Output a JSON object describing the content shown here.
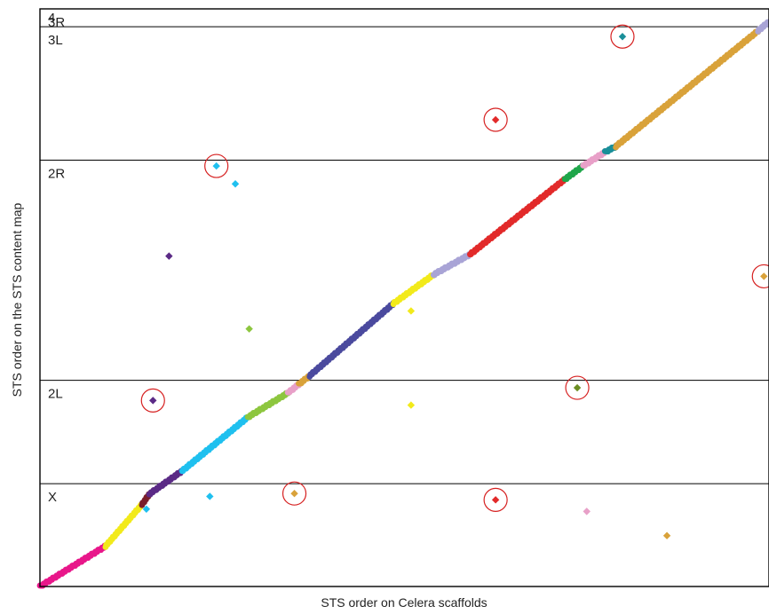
{
  "chart_data": {
    "type": "scatter",
    "title": "",
    "xlabel": "STS order on Celera scaffolds",
    "ylabel": "STS order on the STS content map",
    "xlim": [
      0,
      1000
    ],
    "ylim": [
      0,
      1000
    ],
    "grid": false,
    "bands": [
      {
        "label": "X",
        "start": 0,
        "end": 178
      },
      {
        "label": "2L",
        "start": 178,
        "end": 357
      },
      {
        "label": "2R",
        "start": 357,
        "end": 738
      },
      {
        "label": "3L",
        "start": 738,
        "end": 969
      },
      {
        "label": "3R",
        "start": 969,
        "end": 1000
      },
      {
        "label": "4",
        "start": 1000,
        "end": 1000
      }
    ],
    "diagonal_segments": [
      {
        "color": "#e8178a",
        "x": [
          0,
          90
        ],
        "y": [
          0,
          70
        ]
      },
      {
        "color": "#f2ea1b",
        "x": [
          90,
          140
        ],
        "y": [
          70,
          142
        ]
      },
      {
        "color": "#7a1e2a",
        "x": [
          140,
          150
        ],
        "y": [
          142,
          160
        ]
      },
      {
        "color": "#5b2a86",
        "x": [
          150,
          195
        ],
        "y": [
          160,
          200
        ]
      },
      {
        "color": "#1fc0ef",
        "x": [
          195,
          285
        ],
        "y": [
          200,
          293
        ]
      },
      {
        "color": "#8dc63f",
        "x": [
          285,
          340
        ],
        "y": [
          293,
          335
        ]
      },
      {
        "color": "#e8a0c8",
        "x": [
          340,
          355
        ],
        "y": [
          335,
          350
        ]
      },
      {
        "color": "#d9a23a",
        "x": [
          355,
          370
        ],
        "y": [
          350,
          365
        ]
      },
      {
        "color": "#4b4a9e",
        "x": [
          370,
          485
        ],
        "y": [
          365,
          490
        ]
      },
      {
        "color": "#f2ea1b",
        "x": [
          485,
          540
        ],
        "y": [
          490,
          540
        ]
      },
      {
        "color": "#a9a4d6",
        "x": [
          540,
          590
        ],
        "y": [
          540,
          575
        ]
      },
      {
        "color": "#e22a2a",
        "x": [
          590,
          720
        ],
        "y": [
          575,
          705
        ]
      },
      {
        "color": "#1fa64a",
        "x": [
          720,
          745
        ],
        "y": [
          705,
          728
        ]
      },
      {
        "color": "#e8a0c8",
        "x": [
          745,
          775
        ],
        "y": [
          728,
          752
        ]
      },
      {
        "color": "#1a8f99",
        "x": [
          775,
          790
        ],
        "y": [
          752,
          762
        ]
      },
      {
        "color": "#d9a23a",
        "x": [
          790,
          985
        ],
        "y": [
          762,
          962
        ]
      },
      {
        "color": "#a9a4d6",
        "x": [
          985,
          1000
        ],
        "y": [
          962,
          978
        ]
      }
    ],
    "outliers": [
      {
        "x": 799,
        "y": 952,
        "color": "#1a8f99",
        "circled": true
      },
      {
        "x": 625,
        "y": 808,
        "color": "#e22a2a",
        "circled": true
      },
      {
        "x": 242,
        "y": 728,
        "color": "#1fc0ef",
        "circled": true
      },
      {
        "x": 268,
        "y": 697,
        "color": "#1fc0ef",
        "circled": false
      },
      {
        "x": 177,
        "y": 572,
        "color": "#5b2a86",
        "circled": false
      },
      {
        "x": 993,
        "y": 537,
        "color": "#d9a23a",
        "circled": true
      },
      {
        "x": 287,
        "y": 446,
        "color": "#8dc63f",
        "circled": false
      },
      {
        "x": 509,
        "y": 477,
        "color": "#f2ea1b",
        "circled": false
      },
      {
        "x": 737,
        "y": 344,
        "color": "#6b8e23",
        "circled": true
      },
      {
        "x": 155,
        "y": 322,
        "color": "#5b2a86",
        "circled": true
      },
      {
        "x": 509,
        "y": 314,
        "color": "#f2ea1b",
        "circled": false
      },
      {
        "x": 233,
        "y": 156,
        "color": "#1fc0ef",
        "circled": false
      },
      {
        "x": 349,
        "y": 161,
        "color": "#d9a23a",
        "circled": true
      },
      {
        "x": 625,
        "y": 150,
        "color": "#e22a2a",
        "circled": true
      },
      {
        "x": 146,
        "y": 134,
        "color": "#1fc0ef",
        "circled": false
      },
      {
        "x": 750,
        "y": 130,
        "color": "#e8a0c8",
        "circled": false
      },
      {
        "x": 860,
        "y": 88,
        "color": "#d9a23a",
        "circled": false
      }
    ]
  }
}
